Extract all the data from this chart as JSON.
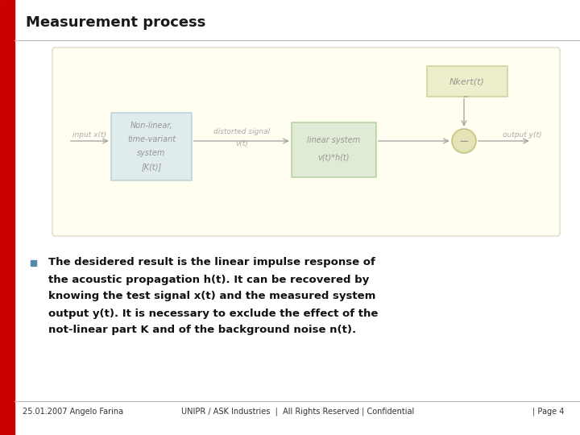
{
  "title": "Measurement process",
  "bg_color": "#ffffff",
  "red_bar_color": "#cc0000",
  "diagram_bg": "#fffef0",
  "diagram_border": "#ddddcc",
  "footer_left": "25.01.2007 Angelo Farina",
  "footer_center": "UNIPR / ASK Industries  |  All Rights Reserved | Confidential",
  "footer_right": "| Page 4",
  "bullet_color": "#5588aa",
  "bullet_text_lines": [
    "The desidered result is the linear impulse response of",
    "the acoustic propagation h(t). It can be recovered by",
    "knowing the test signal x(t) and the measured system",
    "output y(t). It is necessary to exclude the effect of the",
    "not-linear part K and of the background noise n(t)."
  ],
  "box1_facecolor": "#c8dde8",
  "box1_edgecolor": "#9ab8c8",
  "box1_text": [
    "Non-linear,",
    "time-variant",
    "system",
    "[K(t)]"
  ],
  "box2_facecolor": "#c8ddc0",
  "box2_edgecolor": "#90b878",
  "box2_text": [
    "linear system",
    "v(t)*h(t)"
  ],
  "box3_facecolor": "#e0e0b0",
  "box3_edgecolor": "#b8b870",
  "box3_text": "Nkert(t)",
  "sum_facecolor": "#d0d088",
  "sum_edgecolor": "#a0a048",
  "arrow_color": "#999999",
  "text_fade": "#aaaaaa",
  "label_input": "input x(t)",
  "label_distorted1": "distorted signal",
  "label_distorted2": "v(t)",
  "label_output": "output y(t)",
  "diag_alpha": 0.55
}
